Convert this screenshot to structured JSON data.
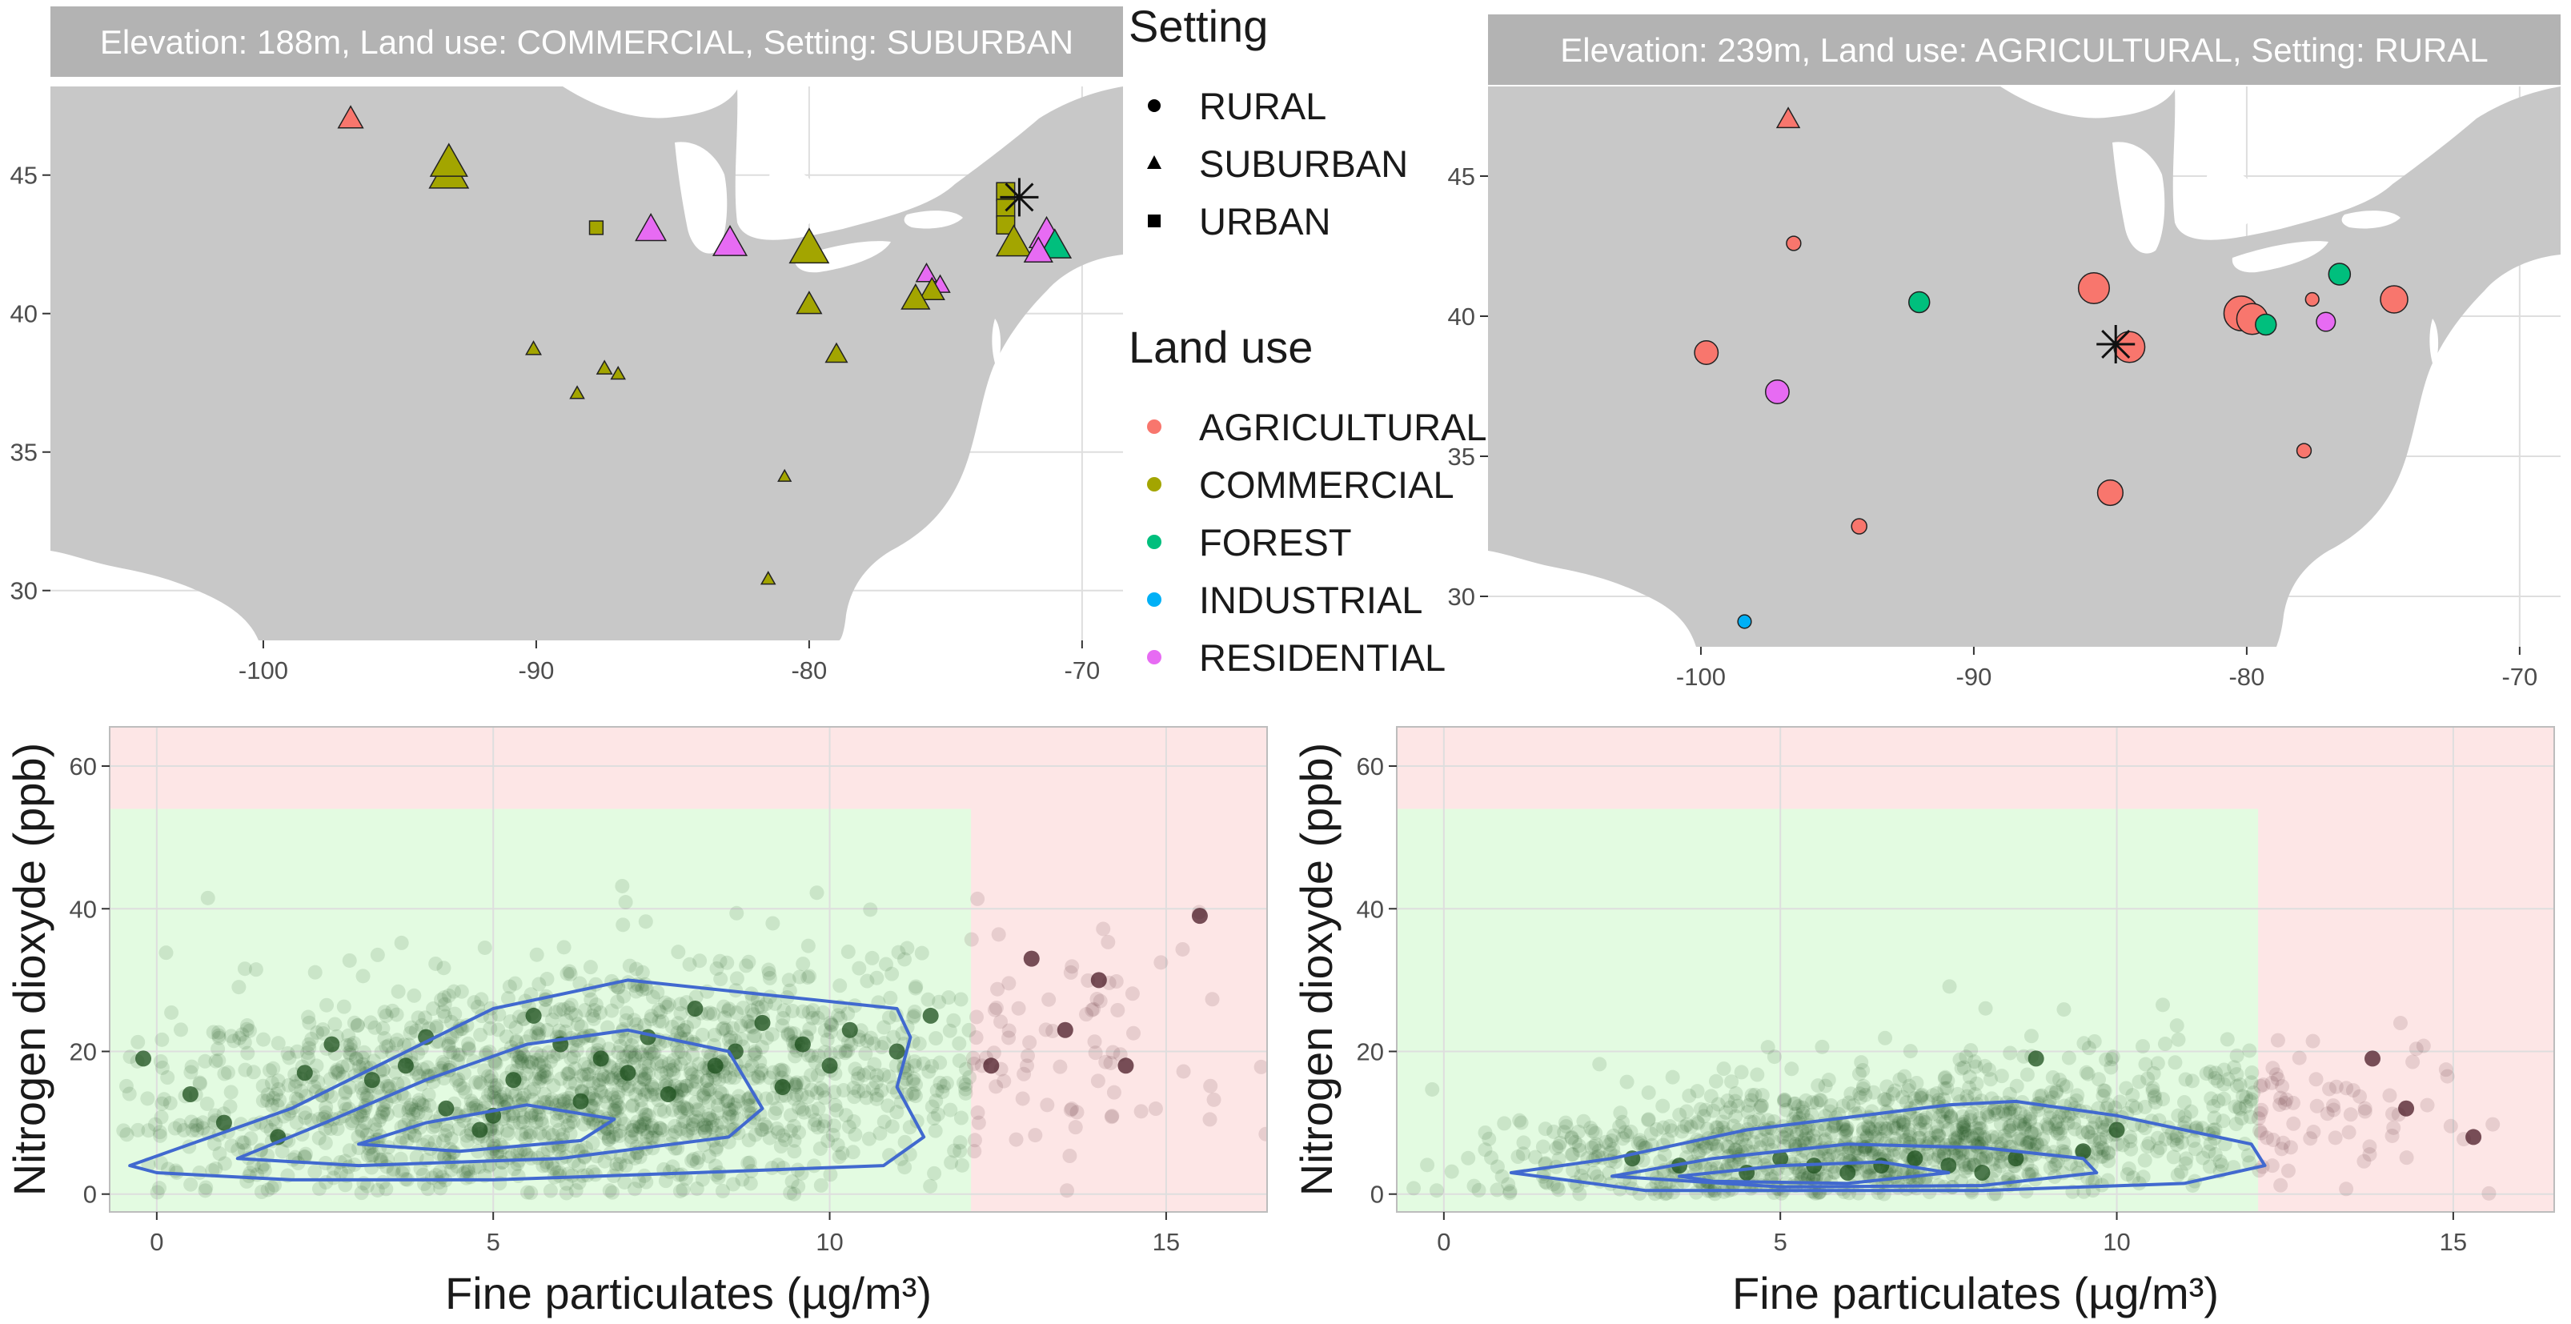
{
  "legend": {
    "setting_title": "Setting",
    "setting_items": [
      {
        "label": "RURAL",
        "shape": "circle"
      },
      {
        "label": "SUBURBAN",
        "shape": "triangle"
      },
      {
        "label": "URBAN",
        "shape": "square"
      }
    ],
    "landuse_title": "Land use",
    "landuse_items": [
      {
        "label": "AGRICULTURAL",
        "color": "#F8766D"
      },
      {
        "label": "COMMERCIAL",
        "color": "#A3A500"
      },
      {
        "label": "FOREST",
        "color": "#00BF7D"
      },
      {
        "label": "INDUSTRIAL",
        "color": "#00B0F6"
      },
      {
        "label": "RESIDENTIAL",
        "color": "#E76BF3"
      }
    ]
  },
  "colors": {
    "land": "#c8c8c8",
    "water": "#ffffff",
    "strip": "#b3b3b3",
    "good_zone": "#e3fbe1",
    "bad_zone": "#fde6e6",
    "contour": "#4169cf",
    "point_good": "#1b4d1b",
    "point_bad": "#4a1a25",
    "grid": "#dedede"
  },
  "chart_data": [
    {
      "type": "scatter",
      "panel": "map-left",
      "title": "Elevation: 188m, Land use: COMMERCIAL, Setting: SUBURBAN",
      "xlabel": "",
      "ylabel": "",
      "xlim": [
        -107.8,
        -68.5
      ],
      "ylim": [
        28.2,
        48.2
      ],
      "xticks": [
        -100,
        -90,
        -80,
        -70
      ],
      "yticks": [
        30,
        35,
        40,
        45
      ],
      "selected_site": {
        "lon": -72.3,
        "lat": 44.2
      },
      "points": [
        {
          "lon": -96.8,
          "lat": 47.0,
          "landuse": "AGRICULTURAL",
          "setting": "SUBURBAN",
          "size": 1.5
        },
        {
          "lon": -93.2,
          "lat": 45.0,
          "landuse": "COMMERCIAL",
          "setting": "SUBURBAN",
          "size": 2.8
        },
        {
          "lon": -93.2,
          "lat": 45.4,
          "landuse": "COMMERCIAL",
          "setting": "SUBURBAN",
          "size": 2.6
        },
        {
          "lon": -87.8,
          "lat": 43.1,
          "landuse": "COMMERCIAL",
          "setting": "URBAN",
          "size": 1.0
        },
        {
          "lon": -85.8,
          "lat": 43.0,
          "landuse": "RESIDENTIAL",
          "setting": "SUBURBAN",
          "size": 2.0
        },
        {
          "lon": -82.9,
          "lat": 42.5,
          "landuse": "RESIDENTIAL",
          "setting": "SUBURBAN",
          "size": 2.3
        },
        {
          "lon": -80.0,
          "lat": 42.3,
          "landuse": "COMMERCIAL",
          "setting": "SUBURBAN",
          "size": 2.8
        },
        {
          "lon": -80.0,
          "lat": 40.3,
          "landuse": "COMMERCIAL",
          "setting": "SUBURBAN",
          "size": 1.5
        },
        {
          "lon": -79.0,
          "lat": 38.5,
          "landuse": "COMMERCIAL",
          "setting": "SUBURBAN",
          "size": 1.2
        },
        {
          "lon": -90.1,
          "lat": 38.7,
          "landuse": "COMMERCIAL",
          "setting": "SUBURBAN",
          "size": 0.6
        },
        {
          "lon": -87.5,
          "lat": 38.0,
          "landuse": "COMMERCIAL",
          "setting": "SUBURBAN",
          "size": 0.6
        },
        {
          "lon": -87.0,
          "lat": 37.8,
          "landuse": "COMMERCIAL",
          "setting": "SUBURBAN",
          "size": 0.5
        },
        {
          "lon": -88.5,
          "lat": 37.1,
          "landuse": "COMMERCIAL",
          "setting": "SUBURBAN",
          "size": 0.5
        },
        {
          "lon": -80.9,
          "lat": 34.1,
          "landuse": "COMMERCIAL",
          "setting": "SUBURBAN",
          "size": 0.4
        },
        {
          "lon": -81.5,
          "lat": 30.4,
          "landuse": "COMMERCIAL",
          "setting": "SUBURBAN",
          "size": 0.5
        },
        {
          "lon": -75.7,
          "lat": 41.4,
          "landuse": "RESIDENTIAL",
          "setting": "SUBURBAN",
          "size": 1.1
        },
        {
          "lon": -75.2,
          "lat": 41.0,
          "landuse": "RESIDENTIAL",
          "setting": "SUBURBAN",
          "size": 1.0
        },
        {
          "lon": -75.5,
          "lat": 40.8,
          "landuse": "COMMERCIAL",
          "setting": "SUBURBAN",
          "size": 1.5
        },
        {
          "lon": -76.1,
          "lat": 40.5,
          "landuse": "COMMERCIAL",
          "setting": "SUBURBAN",
          "size": 1.8
        },
        {
          "lon": -72.8,
          "lat": 44.4,
          "landuse": "COMMERCIAL",
          "setting": "URBAN",
          "size": 1.6
        },
        {
          "lon": -72.8,
          "lat": 43.8,
          "landuse": "COMMERCIAL",
          "setting": "URBAN",
          "size": 1.6
        },
        {
          "lon": -72.8,
          "lat": 43.2,
          "landuse": "COMMERCIAL",
          "setting": "URBAN",
          "size": 1.6
        },
        {
          "lon": -72.5,
          "lat": 42.5,
          "landuse": "COMMERCIAL",
          "setting": "SUBURBAN",
          "size": 2.4
        },
        {
          "lon": -71.3,
          "lat": 42.8,
          "landuse": "RESIDENTIAL",
          "setting": "SUBURBAN",
          "size": 2.4
        },
        {
          "lon": -71.0,
          "lat": 42.4,
          "landuse": "FOREST",
          "setting": "SUBURBAN",
          "size": 2.2
        },
        {
          "lon": -71.6,
          "lat": 42.2,
          "landuse": "RESIDENTIAL",
          "setting": "SUBURBAN",
          "size": 1.8
        }
      ]
    },
    {
      "type": "scatter",
      "panel": "map-right",
      "title": "Elevation: 239m, Land use: AGRICULTURAL, Setting: RURAL",
      "xlabel": "",
      "ylabel": "",
      "xlim": [
        -107.8,
        -68.5
      ],
      "ylim": [
        28.2,
        48.2
      ],
      "xticks": [
        -100,
        -90,
        -80,
        -70
      ],
      "yticks": [
        30,
        35,
        40,
        45
      ],
      "selected_site": {
        "lon": -84.8,
        "lat": 39.0
      },
      "points": [
        {
          "lon": -96.8,
          "lat": 47.0,
          "landuse": "AGRICULTURAL",
          "setting": "SUBURBAN",
          "size": 1.3
        },
        {
          "lon": -96.6,
          "lat": 42.6,
          "landuse": "AGRICULTURAL",
          "setting": "RURAL",
          "size": 0.8
        },
        {
          "lon": -99.8,
          "lat": 38.7,
          "landuse": "AGRICULTURAL",
          "setting": "RURAL",
          "size": 1.8
        },
        {
          "lon": -97.2,
          "lat": 37.3,
          "landuse": "RESIDENTIAL",
          "setting": "RURAL",
          "size": 1.8
        },
        {
          "lon": -92.0,
          "lat": 40.5,
          "landuse": "FOREST",
          "setting": "RURAL",
          "size": 1.5
        },
        {
          "lon": -85.6,
          "lat": 41.0,
          "landuse": "AGRICULTURAL",
          "setting": "RURAL",
          "size": 2.6
        },
        {
          "lon": -84.3,
          "lat": 38.9,
          "landuse": "AGRICULTURAL",
          "setting": "RURAL",
          "size": 2.6
        },
        {
          "lon": -85.0,
          "lat": 33.7,
          "landuse": "AGRICULTURAL",
          "setting": "RURAL",
          "size": 2.0
        },
        {
          "lon": -94.2,
          "lat": 32.5,
          "landuse": "AGRICULTURAL",
          "setting": "RURAL",
          "size": 0.9
        },
        {
          "lon": -98.4,
          "lat": 29.1,
          "landuse": "INDUSTRIAL",
          "setting": "RURAL",
          "size": 0.7
        },
        {
          "lon": -80.2,
          "lat": 40.1,
          "landuse": "AGRICULTURAL",
          "setting": "RURAL",
          "size": 3.0
        },
        {
          "lon": -79.8,
          "lat": 39.9,
          "landuse": "AGRICULTURAL",
          "setting": "RURAL",
          "size": 2.6
        },
        {
          "lon": -79.3,
          "lat": 39.7,
          "landuse": "FOREST",
          "setting": "RURAL",
          "size": 1.5
        },
        {
          "lon": -77.6,
          "lat": 40.6,
          "landuse": "AGRICULTURAL",
          "setting": "RURAL",
          "size": 0.7
        },
        {
          "lon": -76.6,
          "lat": 41.5,
          "landuse": "FOREST",
          "setting": "RURAL",
          "size": 1.6
        },
        {
          "lon": -77.1,
          "lat": 39.8,
          "landuse": "RESIDENTIAL",
          "setting": "RURAL",
          "size": 1.3
        },
        {
          "lon": -74.6,
          "lat": 40.6,
          "landuse": "AGRICULTURAL",
          "setting": "RURAL",
          "size": 2.2
        },
        {
          "lon": -77.9,
          "lat": 35.2,
          "landuse": "AGRICULTURAL",
          "setting": "RURAL",
          "size": 0.8
        }
      ]
    },
    {
      "type": "scatter",
      "panel": "scatter-left",
      "title": "",
      "xlabel": "Fine particulates (µg/m³)",
      "ylabel": "Nitrogen dioxyde (ppb)",
      "xlim": [
        -0.7,
        16.5
      ],
      "ylim": [
        -2.5,
        65.5
      ],
      "xticks": [
        0,
        5,
        10,
        15
      ],
      "yticks": [
        0,
        20,
        40,
        60
      ],
      "thresholds": {
        "pm25": 12.1,
        "no2": 54
      },
      "cloud": {
        "n": 1900,
        "pm_center": 6.2,
        "pm_spread": 3.4,
        "no2_center": 14,
        "no2_spread": 8.5,
        "seed": 11
      },
      "contours": [
        [
          [
            -0.4,
            4
          ],
          [
            0.5,
            7
          ],
          [
            2,
            12
          ],
          [
            3.5,
            19
          ],
          [
            5,
            26
          ],
          [
            7,
            30
          ],
          [
            9,
            28
          ],
          [
            11,
            26
          ],
          [
            11.2,
            22
          ],
          [
            11,
            15
          ],
          [
            11.4,
            8
          ],
          [
            10.8,
            4
          ],
          [
            8,
            3
          ],
          [
            5,
            2
          ],
          [
            2,
            2
          ],
          [
            0,
            3
          ]
        ],
        [
          [
            1.2,
            5
          ],
          [
            2.5,
            10
          ],
          [
            4,
            16
          ],
          [
            5.5,
            21
          ],
          [
            7,
            23
          ],
          [
            8.5,
            20
          ],
          [
            9,
            12
          ],
          [
            8.5,
            8
          ],
          [
            6,
            5
          ],
          [
            3,
            4
          ],
          [
            1.2,
            5
          ]
        ],
        [
          [
            3,
            7
          ],
          [
            4,
            10
          ],
          [
            5.5,
            12.5
          ],
          [
            6.8,
            10.5
          ],
          [
            6.3,
            7.5
          ],
          [
            4.5,
            6
          ],
          [
            3,
            7
          ]
        ]
      ],
      "dark_points": [
        [
          -0.2,
          19
        ],
        [
          0.5,
          14
        ],
        [
          1,
          10
        ],
        [
          1.8,
          8
        ],
        [
          2.2,
          17
        ],
        [
          2.6,
          21
        ],
        [
          3.2,
          16
        ],
        [
          3.7,
          18
        ],
        [
          4,
          22
        ],
        [
          4.3,
          12
        ],
        [
          4.8,
          9
        ],
        [
          5,
          11
        ],
        [
          5.3,
          16
        ],
        [
          5.6,
          25
        ],
        [
          6,
          21
        ],
        [
          6.3,
          13
        ],
        [
          6.6,
          19
        ],
        [
          7,
          17
        ],
        [
          7.3,
          22
        ],
        [
          7.6,
          14
        ],
        [
          8,
          26
        ],
        [
          8.3,
          18
        ],
        [
          8.6,
          20
        ],
        [
          9,
          24
        ],
        [
          9.3,
          15
        ],
        [
          9.6,
          21
        ],
        [
          10,
          18
        ],
        [
          10.3,
          23
        ],
        [
          11,
          20
        ],
        [
          11.5,
          25
        ],
        [
          12.4,
          18
        ],
        [
          13,
          33
        ],
        [
          13.5,
          23
        ],
        [
          14,
          30
        ],
        [
          14.4,
          18
        ],
        [
          15.5,
          39
        ]
      ]
    },
    {
      "type": "scatter",
      "panel": "scatter-right",
      "title": "",
      "xlabel": "Fine particulates (µg/m³)",
      "ylabel": "Nitrogen dioxyde (ppb)",
      "xlim": [
        -0.7,
        16.5
      ],
      "ylim": [
        -2.5,
        65.5
      ],
      "xticks": [
        0,
        5,
        10,
        15
      ],
      "yticks": [
        0,
        20,
        40,
        60
      ],
      "thresholds": {
        "pm25": 12.1,
        "no2": 54
      },
      "cloud": {
        "n": 1500,
        "pm_center": 6.5,
        "pm_spread": 3.2,
        "no2_center": 6,
        "no2_spread": 5.5,
        "seed": 29
      },
      "contours": [
        [
          [
            1,
            3
          ],
          [
            2.5,
            5
          ],
          [
            4.5,
            9
          ],
          [
            7.5,
            12.5
          ],
          [
            8.5,
            13
          ],
          [
            10,
            11
          ],
          [
            12,
            7
          ],
          [
            12.2,
            4
          ],
          [
            11,
            1.5
          ],
          [
            8,
            0.5
          ],
          [
            5,
            0.5
          ],
          [
            3,
            0.5
          ],
          [
            1,
            3
          ]
        ],
        [
          [
            2.5,
            2.5
          ],
          [
            4,
            5
          ],
          [
            6,
            7
          ],
          [
            8,
            6.5
          ],
          [
            9.5,
            5
          ],
          [
            9.7,
            3
          ],
          [
            8,
            1.2
          ],
          [
            5,
            1
          ],
          [
            2.5,
            2.5
          ]
        ],
        [
          [
            3.5,
            2.5
          ],
          [
            5,
            4
          ],
          [
            6.5,
            4.5
          ],
          [
            7.5,
            3
          ],
          [
            6,
            1.5
          ],
          [
            4,
            1.8
          ],
          [
            3.5,
            2.5
          ]
        ]
      ],
      "dark_points": [
        [
          2.8,
          5
        ],
        [
          3.5,
          4
        ],
        [
          4.5,
          3
        ],
        [
          5,
          5
        ],
        [
          5.5,
          4
        ],
        [
          6,
          3
        ],
        [
          6.5,
          4
        ],
        [
          7,
          5
        ],
        [
          7.5,
          4
        ],
        [
          8,
          3
        ],
        [
          8.5,
          5
        ],
        [
          8.8,
          19
        ],
        [
          9.5,
          6
        ],
        [
          10,
          9
        ],
        [
          13.8,
          19
        ],
        [
          14.3,
          12
        ],
        [
          15.3,
          8
        ]
      ]
    }
  ]
}
